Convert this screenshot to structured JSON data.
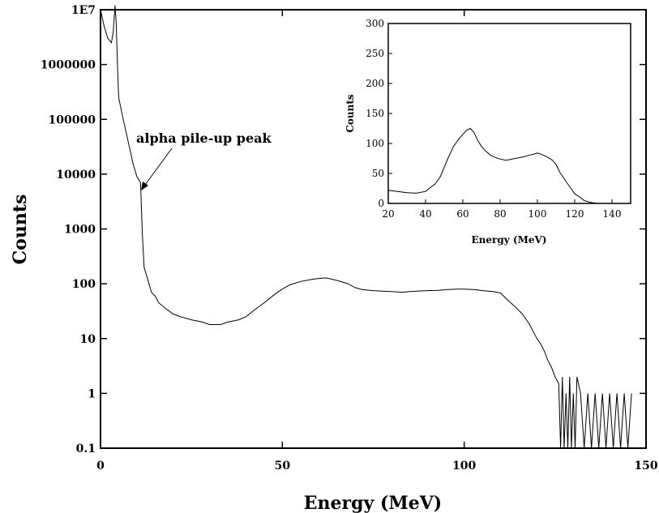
{
  "chart_data": [
    {
      "type": "line",
      "xlabel": "Energy (MeV)",
      "ylabel": "Counts",
      "xlim": [
        0,
        150
      ],
      "ylim": [
        0.1,
        10000000
      ],
      "yscale": "log",
      "grid": false,
      "x_ticks": [
        "0",
        "50",
        "100",
        "150"
      ],
      "y_ticks": [
        "0.1",
        "1",
        "10",
        "100",
        "1000",
        "10000",
        "100000",
        "1000000",
        "1E7"
      ],
      "annotation": {
        "text": "alpha pile-up peak",
        "points_to": [
          11,
          8000
        ]
      },
      "series": [
        {
          "x": [
            0,
            1,
            2,
            3,
            3.5,
            4,
            4.3,
            4.7,
            5,
            6,
            7,
            8,
            9,
            10,
            10.5,
            11,
            11.5,
            12,
            13,
            14,
            15,
            16,
            18,
            20,
            22,
            25,
            28,
            30,
            33,
            35,
            38,
            40,
            42,
            45,
            48,
            50,
            52,
            55,
            58,
            60,
            62,
            65,
            68,
            70,
            72,
            75,
            78,
            80,
            83,
            85,
            88,
            90,
            93,
            95,
            98,
            100,
            103,
            105,
            108,
            110,
            112,
            114,
            116,
            118,
            120,
            121,
            122,
            123,
            124,
            125,
            126,
            126.5,
            127,
            127.5,
            128,
            128.5,
            129,
            129.5,
            130,
            130.5,
            131,
            132,
            133,
            134,
            135,
            136,
            137,
            138,
            139,
            140,
            141,
            142,
            143,
            144,
            145,
            146
          ],
          "y": [
            10000000,
            5000000,
            3000000,
            2500000,
            4000000,
            12000000,
            6000000,
            800000,
            250000,
            120000,
            60000,
            30000,
            15000,
            9000,
            8000,
            7000,
            800,
            200,
            120,
            70,
            60,
            45,
            35,
            28,
            25,
            22,
            20,
            18,
            18,
            20,
            22,
            25,
            32,
            45,
            65,
            80,
            95,
            110,
            120,
            125,
            128,
            115,
            100,
            85,
            78,
            75,
            73,
            72,
            70,
            72,
            74,
            75,
            76,
            78,
            80,
            80,
            78,
            75,
            72,
            68,
            50,
            38,
            28,
            18,
            10,
            8,
            6,
            4,
            3,
            2,
            1.5,
            0.1,
            2,
            0.1,
            1,
            0.1,
            2,
            0.1,
            1,
            0.1,
            2,
            1,
            0.1,
            1,
            0.1,
            1,
            0.1,
            1,
            0.1,
            1,
            0.1,
            1,
            0.1,
            1,
            0.1,
            1
          ]
        }
      ]
    },
    {
      "type": "line",
      "inset": true,
      "xlabel": "Energy (MeV)",
      "ylabel": "Counts",
      "xlim": [
        20,
        150
      ],
      "ylim": [
        0,
        300
      ],
      "grid": false,
      "x_ticks": [
        "20",
        "40",
        "60",
        "80",
        "100",
        "120",
        "140"
      ],
      "y_ticks": [
        "0",
        "50",
        "100",
        "150",
        "200",
        "250",
        "300"
      ],
      "series": [
        {
          "x": [
            20,
            25,
            30,
            35,
            40,
            42,
            45,
            48,
            50,
            52,
            55,
            58,
            60,
            62,
            64,
            66,
            68,
            70,
            72,
            75,
            78,
            80,
            83,
            85,
            88,
            90,
            93,
            95,
            98,
            100,
            102,
            105,
            108,
            110,
            112,
            115,
            118,
            120,
            123,
            125,
            128,
            130,
            132,
            135
          ],
          "y": [
            22,
            20,
            18,
            17,
            20,
            25,
            32,
            45,
            60,
            75,
            95,
            108,
            115,
            122,
            125,
            118,
            105,
            95,
            88,
            80,
            76,
            74,
            72,
            73,
            75,
            76,
            78,
            80,
            82,
            84,
            82,
            78,
            72,
            65,
            52,
            38,
            25,
            16,
            10,
            5,
            2,
            1,
            0,
            0
          ]
        }
      ]
    }
  ]
}
